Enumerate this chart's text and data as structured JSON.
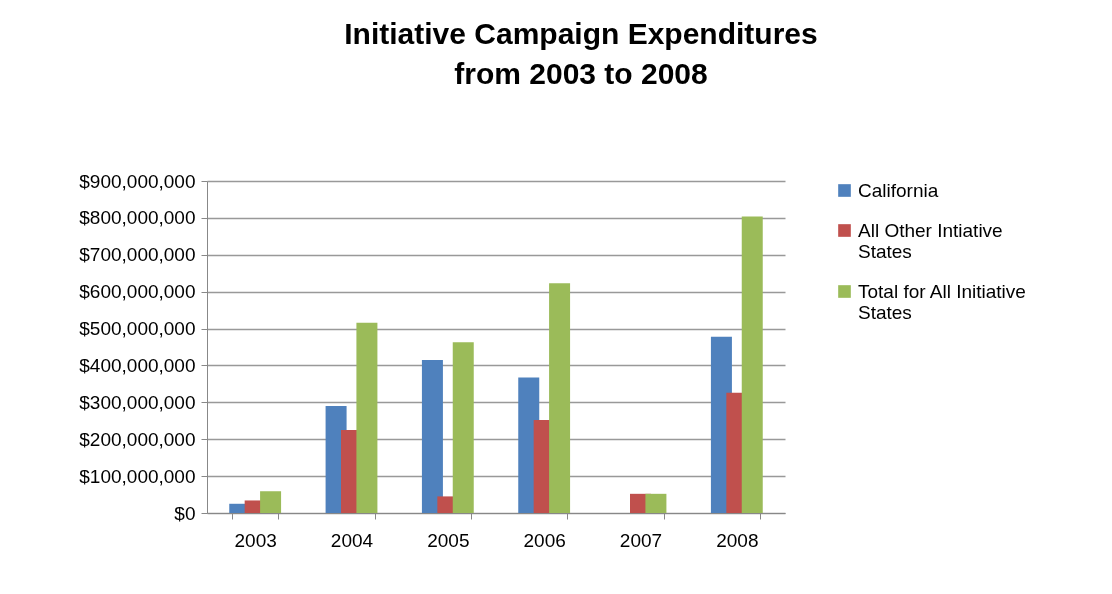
{
  "chart_data": {
    "type": "bar",
    "title": "Initiative Campaign Expenditures from 2003 to 2008",
    "categories": [
      "2003",
      "2004",
      "2005",
      "2006",
      "2007",
      "2008"
    ],
    "series": [
      {
        "name": "California",
        "color": "#4f81bd",
        "values": [
          25000000,
          290000000,
          415000000,
          367000000,
          null,
          478000000
        ]
      },
      {
        "name": "All Other Intiative States",
        "color": "#c0504d",
        "values": [
          34000000,
          225000000,
          45000000,
          252000000,
          52000000,
          326000000
        ]
      },
      {
        "name": "Total for All Initiative States",
        "color": "#9bbb59",
        "values": [
          59000000,
          516000000,
          463000000,
          623000000,
          52000000,
          804000000
        ]
      }
    ],
    "ylim": [
      0,
      900000000
    ],
    "yticks": [
      {
        "value": 0,
        "label": "$0"
      },
      {
        "value": 100000000,
        "label": "$100,000,000"
      },
      {
        "value": 200000000,
        "label": "$200,000,000"
      },
      {
        "value": 300000000,
        "label": "$300,000,000"
      },
      {
        "value": 400000000,
        "label": "$400,000,000"
      },
      {
        "value": 500000000,
        "label": "$500,000,000"
      },
      {
        "value": 600000000,
        "label": "$600,000,000"
      },
      {
        "value": 700000000,
        "label": "$700,000,000"
      },
      {
        "value": 800000000,
        "label": "$800,000,000"
      },
      {
        "value": 900000000,
        "label": "$900,000,000"
      }
    ],
    "grid": "y",
    "legend": "right"
  }
}
